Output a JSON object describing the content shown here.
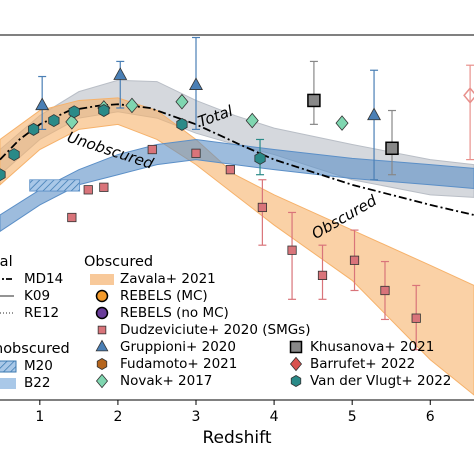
{
  "chart_data": {
    "type": "line",
    "xlabel": "Redshift",
    "xlim": [
      0.49,
      6.56
    ],
    "xticks": [
      1,
      2,
      3,
      4,
      5,
      6
    ],
    "ylim": [
      -3.4,
      -0.5
    ],
    "annotations": [
      {
        "text": "Total",
        "x": 3.25,
        "y": -1.15,
        "rotate": 20,
        "color": "#555555"
      },
      {
        "text": "Unobscured",
        "x": 1.9,
        "y": -1.42,
        "rotate": -18,
        "color": "#3a78b0"
      },
      {
        "text": "Obscured",
        "x": 4.9,
        "y": -1.95,
        "rotate": 30,
        "color": "#e0891f"
      }
    ],
    "series": [
      {
        "kind": "band",
        "color": "#b9bec6",
        "x": [
          0.49,
          1,
          1.5,
          2,
          2.5,
          3,
          3.5,
          4,
          5,
          6,
          6.56
        ],
        "high": [
          -1.41,
          -1.14,
          -0.95,
          -0.86,
          -0.87,
          -1.02,
          -1.14,
          -1.24,
          -1.37,
          -1.49,
          -1.53
        ],
        "low": [
          -1.61,
          -1.33,
          -1.16,
          -1.11,
          -1.16,
          -1.28,
          -1.37,
          -1.45,
          -1.65,
          -1.77,
          -1.79
        ]
      },
      {
        "kind": "band",
        "color": "#f6b26b",
        "x": [
          0.49,
          1,
          1.5,
          2,
          2.5,
          3,
          3.5,
          4,
          5,
          6,
          6.56
        ],
        "high": [
          -1.33,
          -1.1,
          -1.02,
          -1.0,
          -1.1,
          -1.33,
          -1.61,
          -1.77,
          -2.05,
          -2.33,
          -2.49
        ],
        "low": [
          -1.69,
          -1.41,
          -1.25,
          -1.21,
          -1.33,
          -1.53,
          -1.77,
          -2.01,
          -2.45,
          -3.08,
          -3.36
        ]
      },
      {
        "kind": "band",
        "color": "#5b8fc7",
        "x": [
          0.49,
          1,
          1.5,
          2,
          2.5,
          3,
          4,
          5,
          6,
          6.56
        ],
        "high": [
          -1.93,
          -1.73,
          -1.57,
          -1.45,
          -1.37,
          -1.33,
          -1.41,
          -1.48,
          -1.53,
          -1.56
        ],
        "low": [
          -2.06,
          -1.85,
          -1.69,
          -1.61,
          -1.53,
          -1.49,
          -1.57,
          -1.64,
          -1.69,
          -1.72
        ]
      },
      {
        "kind": "hatch",
        "color": "#5b8fc7",
        "x": [
          0.87,
          1.51
        ],
        "high": [
          -1.65,
          -1.65
        ],
        "low": [
          -1.74,
          -1.74
        ]
      },
      {
        "kind": "line",
        "color": "#000000",
        "dash": "8 3 2 3",
        "x": [
          0.49,
          0.74,
          1,
          1.38,
          1.77,
          2,
          2.41,
          3,
          3.56,
          4,
          5,
          6,
          6.56
        ],
        "values": [
          -1.49,
          -1.33,
          -1.21,
          -1.1,
          -1.06,
          -1.05,
          -1.08,
          -1.21,
          -1.37,
          -1.49,
          -1.69,
          -1.85,
          -1.93
        ]
      },
      {
        "kind": "scatter",
        "marker": "square",
        "color": "#d9747a",
        "x": [
          1.41,
          1.62,
          1.82,
          2.44,
          3,
          3.44,
          3.85,
          4.23,
          4.62,
          5.03,
          5.42,
          5.82
        ],
        "values": [
          -1.95,
          -1.73,
          -1.71,
          -1.41,
          -1.44,
          -1.57,
          -1.87,
          -2.21,
          -2.41,
          -2.29,
          -2.53,
          -2.75
        ],
        "high": [
          null,
          null,
          null,
          null,
          null,
          null,
          -1.65,
          -1.91,
          -2.17,
          -2.05,
          -2.3,
          -2.49
        ],
        "low": [
          null,
          null,
          null,
          null,
          null,
          null,
          -2.17,
          -2.6,
          -2.6,
          -2.53,
          -2.76,
          -3.0
        ]
      },
      {
        "kind": "scatter",
        "marker": "triangle",
        "color": "#4a7fb5",
        "x": [
          1.03,
          2.03,
          3,
          5.28
        ],
        "values": [
          -1.06,
          -0.82,
          -0.9,
          -1.14
        ],
        "high": [
          -0.83,
          -0.71,
          -0.52,
          -0.78
        ],
        "low": [
          -1.25,
          -1.08,
          -1.25,
          -1.65
        ]
      },
      {
        "kind": "scatter",
        "marker": "diamond",
        "color": "#7fd6b0",
        "x": [
          1.41,
          1.82,
          2.18,
          2.82,
          3.72,
          4.87
        ],
        "values": [
          -1.19,
          -1.08,
          -1.06,
          -1.03,
          -1.18,
          -1.2
        ]
      },
      {
        "kind": "scatter",
        "marker": "hexagon",
        "color": "#2a8a88",
        "x": [
          0.49,
          0.67,
          0.92,
          1.18,
          1.44,
          1.82,
          2.82,
          3.82
        ],
        "values": [
          -1.61,
          -1.45,
          -1.25,
          -1.18,
          -1.11,
          -1.1,
          -1.21,
          -1.48
        ],
        "high": [
          null,
          null,
          null,
          null,
          null,
          null,
          null,
          -1.33
        ],
        "low": [
          null,
          null,
          null,
          null,
          null,
          null,
          null,
          -1.61
        ]
      },
      {
        "kind": "scatter",
        "marker": "square-open",
        "color": "#888888",
        "x": [
          4.51,
          5.51
        ],
        "values": [
          -1.02,
          -1.4
        ],
        "high": [
          -0.71,
          -1.1
        ],
        "low": [
          -1.21,
          -1.61
        ]
      },
      {
        "kind": "scatter",
        "marker": "diamond-open",
        "color": "#e8908c",
        "x": [
          6.51
        ],
        "values": [
          -0.98
        ],
        "high": [
          -0.74
        ],
        "low": [
          -1.49
        ]
      }
    ],
    "legend": [
      {
        "title": "tal",
        "items": [
          {
            "label": "MD14",
            "marker": "dashdot",
            "color": "#000000"
          },
          {
            "label": "K09",
            "marker": "solid",
            "color": "#555555"
          },
          {
            "label": "RE12",
            "marker": "dotted",
            "color": "#555555"
          }
        ]
      },
      {
        "title": "nobscured",
        "items": [
          {
            "label": "M20",
            "marker": "hatch",
            "color": "#5b8fc7"
          },
          {
            "label": "B22",
            "marker": "patch",
            "color": "#a9c8e8"
          }
        ]
      },
      {
        "title": "Obscured",
        "items": [
          {
            "label": "Zavala+ 2021",
            "marker": "patch",
            "color": "#f8c99a"
          },
          {
            "label": "REBELS (MC)",
            "marker": "circle",
            "color": "#f39a2b"
          },
          {
            "label": "REBELS (no MC)",
            "marker": "circle",
            "color": "#6a3d9a"
          },
          {
            "label": "Dudzeviciute+ 2020 (SMGs)",
            "marker": "square",
            "color": "#d9747a"
          },
          {
            "label": "Gruppioni+ 2020",
            "marker": "triangle",
            "color": "#4a7fb5"
          },
          {
            "label": "Fudamoto+ 2021",
            "marker": "hexagon",
            "color": "#b5651d"
          },
          {
            "label": "Novak+ 2017",
            "marker": "diamond",
            "color": "#7fd6b0"
          },
          {
            "label": "Khusanova+ 2021",
            "marker": "square-open",
            "color": "#888888"
          },
          {
            "label": "Barrufet+ 2022",
            "marker": "diamond",
            "color": "#d9534f"
          },
          {
            "label": "Van der Vlugt+ 2022",
            "marker": "hexagon",
            "color": "#2a8a88"
          }
        ]
      }
    ]
  }
}
